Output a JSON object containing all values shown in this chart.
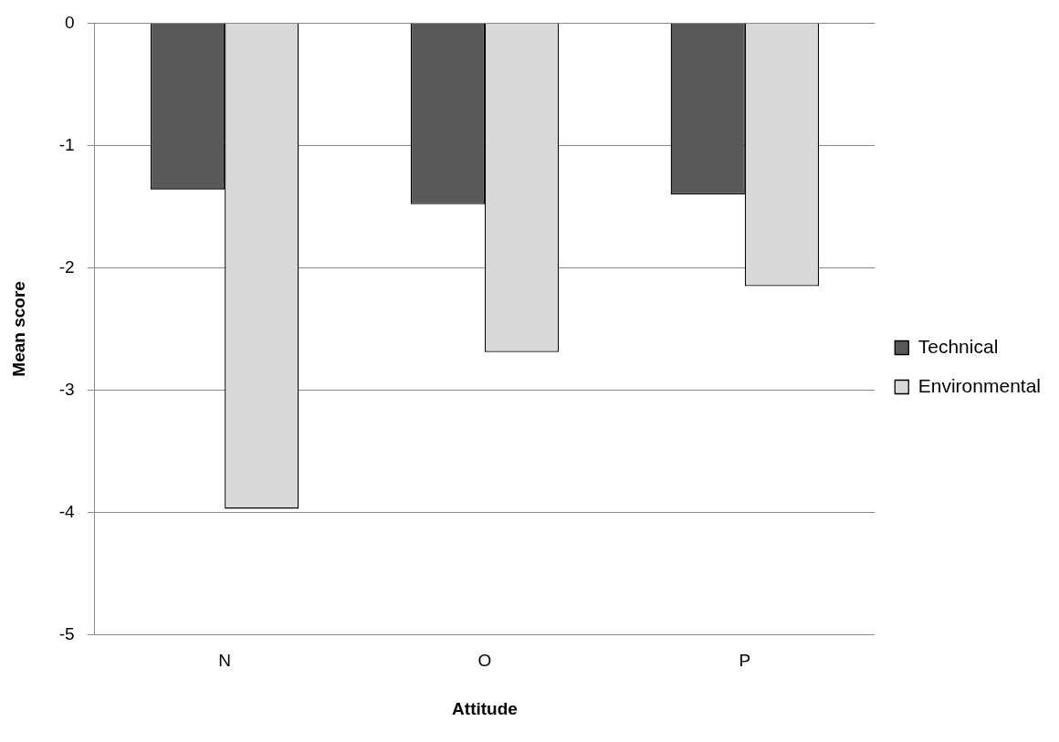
{
  "chart_data": {
    "type": "bar",
    "xlabel": "Attitude",
    "ylabel": "Mean score",
    "categories": [
      "N",
      "O",
      "P"
    ],
    "series": [
      {
        "name": "Technical",
        "color": "#595959",
        "values": [
          -1.36,
          -1.48,
          -1.4
        ]
      },
      {
        "name": "Environmental",
        "color": "#d9d9d9",
        "values": [
          -3.97,
          -2.69,
          -2.15
        ]
      }
    ],
    "ylim": [
      -5,
      0
    ],
    "yticks": [
      -5,
      -4,
      -3,
      -2,
      -1,
      0
    ],
    "grid": "y",
    "legend": "right"
  }
}
